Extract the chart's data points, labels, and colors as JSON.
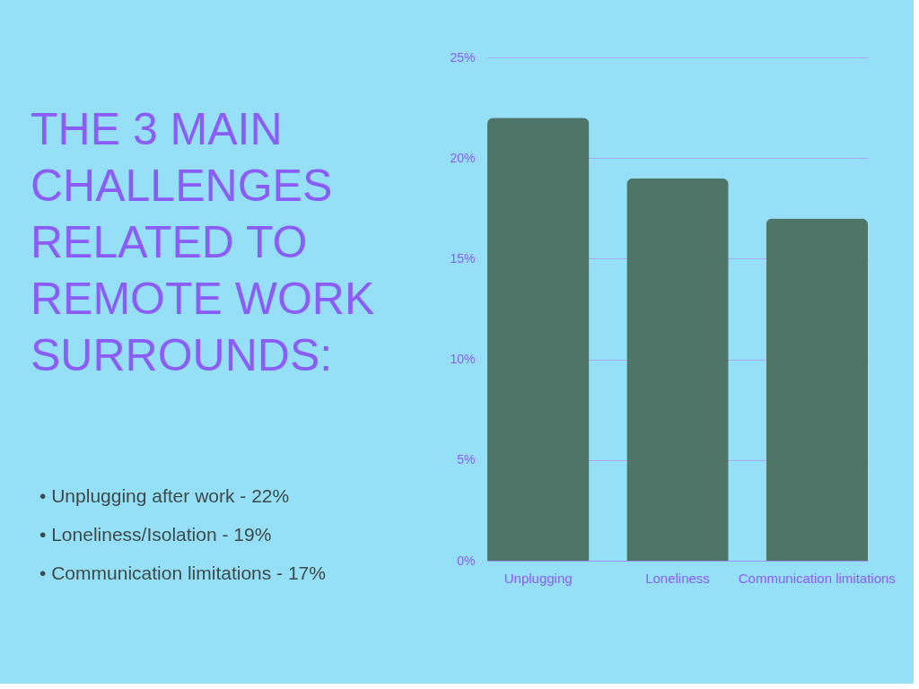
{
  "chart_data": {
    "type": "bar",
    "title": "THE 3 MAIN CHALLENGES RELATED TO REMOTE WORK SURROUNDS:",
    "categories": [
      "Unplugging",
      "Loneliness",
      "Communication limitations"
    ],
    "values": [
      22,
      19,
      17
    ],
    "color": "#4f7568",
    "ylim": [
      0,
      25
    ],
    "yticks": [
      {
        "value": 0,
        "label": "0%"
      },
      {
        "value": 5,
        "label": "5%"
      },
      {
        "value": 10,
        "label": "10%"
      },
      {
        "value": 15,
        "label": "15%"
      },
      {
        "value": 20,
        "label": "20%"
      },
      {
        "value": 25,
        "label": "25%"
      }
    ],
    "grid": "y",
    "annotations": [
      "• Unplugging after work - 22%",
      "• Loneliness/Isolation - 19%",
      "• Communication limitations - 17%"
    ]
  }
}
